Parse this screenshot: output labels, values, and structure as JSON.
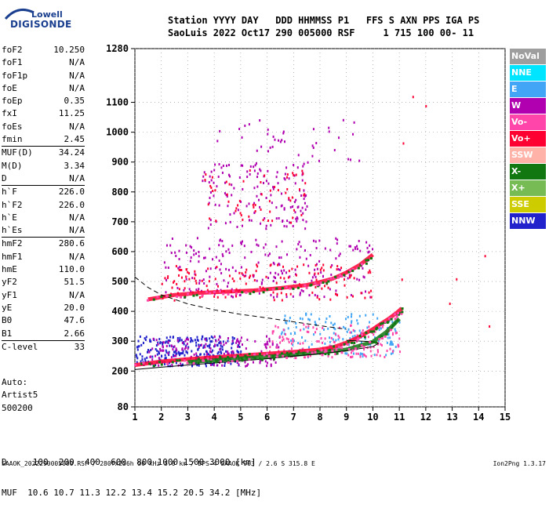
{
  "logo": {
    "top": "Lowell",
    "bottom": "DIGISONDE"
  },
  "header": {
    "line1": "Station YYYY DAY   DDD HHMMSS P1   FFS S AXN PPS IGA PS",
    "line2": "SaoLuis 2022 Oct17 290 005000 RSF     1 715 100 00- 11"
  },
  "params": [
    {
      "name": "foF2",
      "value": "10.250"
    },
    {
      "name": "foF1",
      "value": "N/A"
    },
    {
      "name": "foF1p",
      "value": "N/A"
    },
    {
      "name": "foE",
      "value": "N/A"
    },
    {
      "name": "foEp",
      "value": "0.35"
    },
    {
      "name": "fxI",
      "value": "11.25"
    },
    {
      "name": "foEs",
      "value": "N/A"
    },
    {
      "name": "fmin",
      "value": "2.45"
    },
    {
      "name": "MUF(D)",
      "value": "34.24",
      "sep": true
    },
    {
      "name": "M(D)",
      "value": "3.34"
    },
    {
      "name": "D",
      "value": "N/A"
    },
    {
      "name": "h`F",
      "value": "226.0",
      "sep": true
    },
    {
      "name": "h`F2",
      "value": "226.0"
    },
    {
      "name": "h`E",
      "value": "N/A"
    },
    {
      "name": "h`Es",
      "value": "N/A"
    },
    {
      "name": "hmF2",
      "value": "280.6",
      "sep": true
    },
    {
      "name": "hmF1",
      "value": "N/A"
    },
    {
      "name": "hmE",
      "value": "110.0"
    },
    {
      "name": "yF2",
      "value": "51.5"
    },
    {
      "name": "yF1",
      "value": "N/A"
    },
    {
      "name": "yE",
      "value": "20.0"
    },
    {
      "name": "B0",
      "value": "47.6"
    },
    {
      "name": "B1",
      "value": "2.66"
    },
    {
      "name": "C-level",
      "value": "33",
      "sep": true
    }
  ],
  "extra": {
    "line1": "Auto:",
    "line2": "Artist5",
    "line3": "500200"
  },
  "bottom_table": {
    "row1": "D     100  200  400  600  800 1000 1500 3000 [km]",
    "row2": "MUF  10.6 10.7 11.3 12.2 13.4 15.2 20.5 34.2 [MHz]"
  },
  "footer": {
    "left": "SAAOK_2022290005000.RSF / 280fx256h 50 kHz 5.0 km / DPS-4 SAAOK 903 / 2.6 S 315.8 E",
    "right": "Ion2Png 1.3.17"
  },
  "legend": [
    {
      "label": "NoVal",
      "color": "#9e9e9e"
    },
    {
      "label": "NNE",
      "color": "#00e5ff"
    },
    {
      "label": "E",
      "color": "#42a5f5"
    },
    {
      "label": "W",
      "color": "#b000b0"
    },
    {
      "label": "Vo-",
      "color": "#ff44aa"
    },
    {
      "label": "Vo+",
      "color": "#ff0033"
    },
    {
      "label": "SSW",
      "color": "#ffb3a8"
    },
    {
      "label": "X-",
      "color": "#117711"
    },
    {
      "label": "X+",
      "color": "#77bb55"
    },
    {
      "label": "SSE",
      "color": "#cccc00"
    },
    {
      "label": "NNW",
      "color": "#2222cc"
    }
  ],
  "chart_data": {
    "type": "scatter",
    "title": "",
    "xlabel": "",
    "ylabel": "",
    "xlim": [
      1,
      15
    ],
    "ylim": [
      80,
      1280
    ],
    "x_ticks": [
      1,
      2,
      3,
      4,
      5,
      6,
      7,
      8,
      9,
      10,
      11,
      12,
      13,
      14,
      15
    ],
    "y_ticks": [
      80,
      200,
      300,
      400,
      500,
      600,
      700,
      800,
      900,
      1000,
      1100,
      1280
    ],
    "grid": true,
    "traces": [
      {
        "name": "O-trace",
        "color": "#ff0033",
        "x": [
          1.0,
          2.0,
          3.0,
          4.0,
          5.0,
          6.0,
          7.0,
          8.0,
          8.5,
          9.0,
          9.5,
          10.0,
          10.3,
          10.6,
          10.9,
          11.1
        ],
        "y": [
          220,
          232,
          240,
          246,
          252,
          258,
          264,
          272,
          280,
          295,
          315,
          340,
          358,
          375,
          395,
          410
        ]
      },
      {
        "name": "X-trace",
        "color": "#117711",
        "x": [
          3.0,
          4.0,
          5.0,
          6.0,
          7.0,
          8.0,
          9.0,
          10.0,
          10.5,
          11.0
        ],
        "y": [
          230,
          236,
          242,
          248,
          254,
          262,
          272,
          298,
          330,
          375
        ]
      },
      {
        "name": "2-hop",
        "color": "#ff0033",
        "x": [
          1.5,
          2.5,
          3.5,
          4.5,
          5.5,
          6.5,
          7.5,
          8.0,
          8.5,
          9.0,
          9.5,
          10.0
        ],
        "y": [
          440,
          455,
          462,
          466,
          470,
          478,
          488,
          498,
          510,
          530,
          555,
          590
        ]
      },
      {
        "name": "profile",
        "color": "#000000",
        "x": [
          1.0,
          2.0,
          3.0,
          4.0,
          5.0,
          6.0,
          7.0,
          8.0,
          9.0,
          9.5,
          10.0,
          10.2,
          10.0,
          9.0
        ],
        "y": [
          205,
          213,
          220,
          227,
          234,
          241,
          250,
          258,
          268,
          275,
          282,
          292,
          298,
          303
        ]
      },
      {
        "name": "dashed",
        "color": "#000000",
        "x": [
          1.0,
          1.5,
          2.0,
          3.0,
          4.0,
          5.0,
          6.0,
          7.0,
          8.0,
          9.0
        ],
        "y": [
          515,
          480,
          455,
          425,
          405,
          390,
          378,
          365,
          352,
          340
        ]
      }
    ],
    "scatter_groups": [
      {
        "label": "low-band",
        "color": "#2222cc",
        "xr": [
          1.0,
          5.0
        ],
        "yr": [
          220,
          320
        ],
        "n": 260
      },
      {
        "label": "low-band-w",
        "color": "#b000b0",
        "xr": [
          1.5,
          6.5
        ],
        "yr": [
          220,
          320
        ],
        "n": 160
      },
      {
        "label": "mid-band",
        "color": "#42a5f5",
        "xr": [
          6.5,
          11.0
        ],
        "yr": [
          250,
          400
        ],
        "n": 160
      },
      {
        "label": "mid-band-pink",
        "color": "#ff44aa",
        "xr": [
          6.0,
          11.0
        ],
        "yr": [
          250,
          360
        ],
        "n": 140
      },
      {
        "label": "upper-band",
        "color": "#b000b0",
        "xr": [
          2.0,
          10.0
        ],
        "yr": [
          450,
          650
        ],
        "n": 230
      },
      {
        "label": "upper-band-red",
        "color": "#ff0033",
        "xr": [
          2.0,
          10.0
        ],
        "yr": [
          440,
          560
        ],
        "n": 140
      },
      {
        "label": "top-band",
        "color": "#b000b0",
        "xr": [
          3.5,
          7.5
        ],
        "yr": [
          680,
          900
        ],
        "n": 150
      },
      {
        "label": "top-band-red",
        "color": "#ff0033",
        "xr": [
          3.5,
          7.5
        ],
        "yr": [
          690,
          880
        ],
        "n": 60
      },
      {
        "label": "spray",
        "color": "#b000b0",
        "xr": [
          4.0,
          9.5
        ],
        "yr": [
          900,
          1050
        ],
        "n": 40
      },
      {
        "label": "stray",
        "color": "#ff0033",
        "xr": [
          11.0,
          14.5
        ],
        "yr": [
          250,
          1200
        ],
        "n": 8
      }
    ]
  }
}
